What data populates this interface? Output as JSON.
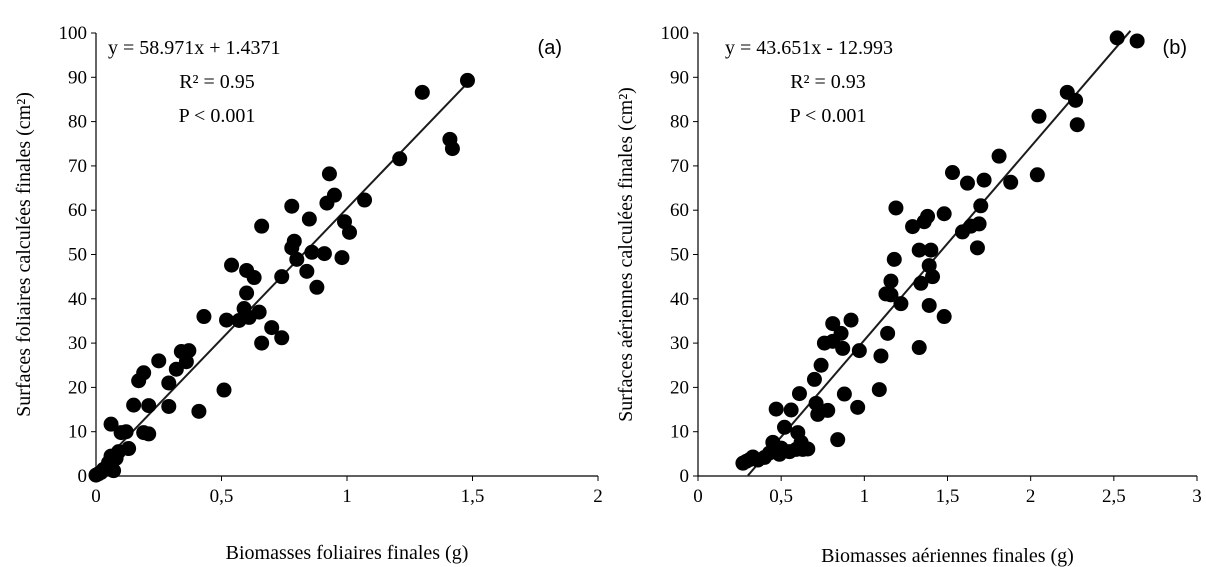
{
  "chart_data": [
    {
      "type": "scatter",
      "panel_label": "(a)",
      "xlabel": "Biomasses foliaires finales (g)",
      "ylabel": "Surfaces foliaires calculées finales (cm²)",
      "xlim": [
        0,
        2
      ],
      "ylim": [
        0,
        100
      ],
      "x_ticks": [
        0,
        0.5,
        1,
        1.5,
        2
      ],
      "x_tick_labels": [
        "0",
        "0,5",
        "1",
        "1,5",
        "2"
      ],
      "y_ticks": [
        0,
        10,
        20,
        30,
        40,
        50,
        60,
        70,
        80,
        90,
        100
      ],
      "y_tick_labels": [
        "0",
        "10",
        "20",
        "30",
        "40",
        "50",
        "60",
        "70",
        "80",
        "90",
        "100"
      ],
      "grid": false,
      "annotations": [
        "y = 58.971x + 1.4371",
        "R² = 0.95",
        "P < 0.001"
      ],
      "regression": {
        "slope": 58.971,
        "intercept": 1.4371,
        "x_range": [
          0,
          1.5
        ]
      },
      "points": [
        [
          0.0,
          0.2
        ],
        [
          0.01,
          0.5
        ],
        [
          0.02,
          0.8
        ],
        [
          0.03,
          1.5
        ],
        [
          0.05,
          3.0
        ],
        [
          0.06,
          4.5
        ],
        [
          0.06,
          11.7
        ],
        [
          0.07,
          1.2
        ],
        [
          0.08,
          4.0
        ],
        [
          0.09,
          5.5
        ],
        [
          0.1,
          9.8
        ],
        [
          0.12,
          10.0
        ],
        [
          0.13,
          6.2
        ],
        [
          0.15,
          16.0
        ],
        [
          0.17,
          21.5
        ],
        [
          0.19,
          23.3
        ],
        [
          0.19,
          9.8
        ],
        [
          0.21,
          15.9
        ],
        [
          0.21,
          9.5
        ],
        [
          0.25,
          26.0
        ],
        [
          0.29,
          15.7
        ],
        [
          0.29,
          21.0
        ],
        [
          0.32,
          24.1
        ],
        [
          0.34,
          28.1
        ],
        [
          0.36,
          25.8
        ],
        [
          0.37,
          28.3
        ],
        [
          0.41,
          14.6
        ],
        [
          0.43,
          36.0
        ],
        [
          0.51,
          19.4
        ],
        [
          0.52,
          35.2
        ],
        [
          0.54,
          47.6
        ],
        [
          0.57,
          35.1
        ],
        [
          0.59,
          37.8
        ],
        [
          0.6,
          46.4
        ],
        [
          0.6,
          41.3
        ],
        [
          0.61,
          35.8
        ],
        [
          0.63,
          44.8
        ],
        [
          0.65,
          37.0
        ],
        [
          0.66,
          30.0
        ],
        [
          0.66,
          56.4
        ],
        [
          0.7,
          33.5
        ],
        [
          0.74,
          31.2
        ],
        [
          0.74,
          45.0
        ],
        [
          0.78,
          60.9
        ],
        [
          0.78,
          51.5
        ],
        [
          0.79,
          53.0
        ],
        [
          0.8,
          48.9
        ],
        [
          0.84,
          46.2
        ],
        [
          0.85,
          58.0
        ],
        [
          0.86,
          50.5
        ],
        [
          0.88,
          42.6
        ],
        [
          0.91,
          50.2
        ],
        [
          0.92,
          61.6
        ],
        [
          0.93,
          68.2
        ],
        [
          0.95,
          63.4
        ],
        [
          0.98,
          49.3
        ],
        [
          0.99,
          57.4
        ],
        [
          1.01,
          55.0
        ],
        [
          1.07,
          62.3
        ],
        [
          1.21,
          71.6
        ],
        [
          1.3,
          86.6
        ],
        [
          1.41,
          76.0
        ],
        [
          1.42,
          73.9
        ],
        [
          1.48,
          89.3
        ]
      ]
    },
    {
      "type": "scatter",
      "panel_label": "(b)",
      "xlabel": "Biomasses aériennes finales (g)",
      "ylabel": "Surfaces aériennes calculées finales (cm²)",
      "xlim": [
        0,
        3
      ],
      "ylim": [
        0,
        100
      ],
      "x_ticks": [
        0,
        0.5,
        1,
        1.5,
        2,
        2.5,
        3
      ],
      "x_tick_labels": [
        "0",
        "0,5",
        "1",
        "1,5",
        "2",
        "2,5",
        "3"
      ],
      "y_ticks": [
        0,
        10,
        20,
        30,
        40,
        50,
        60,
        70,
        80,
        90,
        100
      ],
      "y_tick_labels": [
        "0",
        "10",
        "20",
        "30",
        "40",
        "50",
        "60",
        "70",
        "80",
        "90",
        "100"
      ],
      "grid": false,
      "annotations": [
        "y = 43.651x - 12.993",
        "R² = 0.93",
        "P < 0.001"
      ],
      "regression": {
        "slope": 43.651,
        "intercept": -12.993,
        "x_range": [
          0.3,
          2.6
        ]
      },
      "points": [
        [
          0.27,
          2.9
        ],
        [
          0.29,
          3.3
        ],
        [
          0.31,
          3.7
        ],
        [
          0.33,
          4.3
        ],
        [
          0.36,
          3.6
        ],
        [
          0.4,
          4.2
        ],
        [
          0.43,
          5.2
        ],
        [
          0.45,
          7.6
        ],
        [
          0.47,
          15.1
        ],
        [
          0.49,
          4.9
        ],
        [
          0.5,
          6.3
        ],
        [
          0.52,
          11.0
        ],
        [
          0.55,
          5.5
        ],
        [
          0.56,
          14.9
        ],
        [
          0.59,
          6.0
        ],
        [
          0.6,
          9.8
        ],
        [
          0.61,
          18.6
        ],
        [
          0.62,
          7.6
        ],
        [
          0.63,
          6.0
        ],
        [
          0.66,
          6.1
        ],
        [
          0.7,
          21.8
        ],
        [
          0.71,
          16.4
        ],
        [
          0.72,
          13.9
        ],
        [
          0.74,
          25.0
        ],
        [
          0.76,
          30.0
        ],
        [
          0.78,
          14.8
        ],
        [
          0.81,
          34.4
        ],
        [
          0.81,
          30.4
        ],
        [
          0.84,
          8.2
        ],
        [
          0.86,
          32.2
        ],
        [
          0.87,
          28.8
        ],
        [
          0.88,
          18.5
        ],
        [
          0.92,
          35.2
        ],
        [
          0.96,
          15.5
        ],
        [
          0.97,
          28.3
        ],
        [
          1.09,
          19.5
        ],
        [
          1.1,
          27.1
        ],
        [
          1.13,
          41.1
        ],
        [
          1.14,
          32.2
        ],
        [
          1.16,
          44.0
        ],
        [
          1.16,
          40.9
        ],
        [
          1.18,
          48.9
        ],
        [
          1.19,
          60.5
        ],
        [
          1.22,
          38.9
        ],
        [
          1.29,
          56.3
        ],
        [
          1.33,
          51.0
        ],
        [
          1.33,
          29.0
        ],
        [
          1.34,
          43.5
        ],
        [
          1.36,
          57.4
        ],
        [
          1.38,
          58.6
        ],
        [
          1.39,
          47.5
        ],
        [
          1.39,
          38.5
        ],
        [
          1.4,
          51.0
        ],
        [
          1.41,
          45.0
        ],
        [
          1.48,
          36.0
        ],
        [
          1.48,
          59.2
        ],
        [
          1.53,
          68.5
        ],
        [
          1.59,
          55.1
        ],
        [
          1.62,
          66.1
        ],
        [
          1.64,
          56.4
        ],
        [
          1.68,
          51.5
        ],
        [
          1.69,
          56.9
        ],
        [
          1.7,
          61.0
        ],
        [
          1.72,
          66.8
        ],
        [
          1.81,
          72.2
        ],
        [
          1.88,
          66.3
        ],
        [
          2.04,
          68.0
        ],
        [
          2.05,
          81.2
        ],
        [
          2.22,
          86.6
        ],
        [
          2.27,
          84.8
        ],
        [
          2.28,
          79.3
        ],
        [
          2.52,
          98.9
        ],
        [
          2.64,
          98.2
        ]
      ]
    }
  ]
}
